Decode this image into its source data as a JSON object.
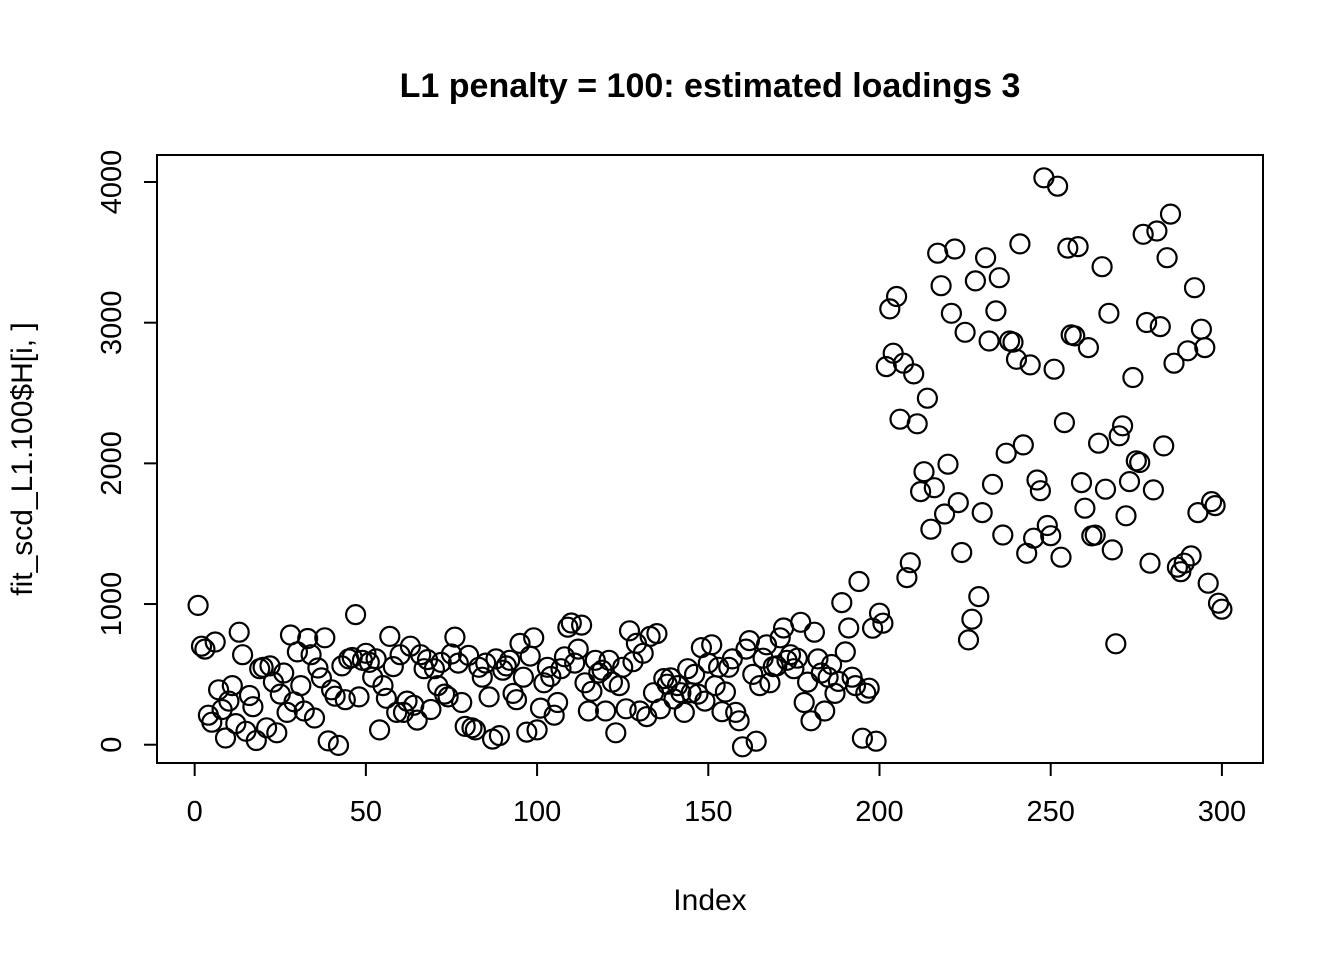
{
  "figure": {
    "background_color": "#ffffff",
    "foreground_color": "#000000"
  },
  "chart_data": {
    "type": "scatter",
    "title": "L1 penalty = 100: estimated loadings 3",
    "xlabel": "Index",
    "ylabel": "fit_scd_L1.100$H[i, ]",
    "marker": "open-circle",
    "marker_color": "#000000",
    "grid": false,
    "legend": "none",
    "x_is_index": true,
    "xlim": [
      -11,
      312
    ],
    "ylim": [
      -130,
      4192
    ],
    "xticks": [
      0,
      50,
      100,
      150,
      200,
      250,
      300
    ],
    "yticks": [
      0,
      1000,
      2000,
      3000,
      4000
    ],
    "values": [
      990,
      700,
      680,
      210,
      160,
      730,
      390,
      250,
      48,
      310,
      420,
      150,
      800,
      640,
      95,
      350,
      270,
      30,
      540,
      550,
      120,
      560,
      445,
      85,
      360,
      510,
      230,
      780,
      305,
      660,
      420,
      240,
      755,
      640,
      190,
      545,
      475,
      760,
      27,
      390,
      345,
      -5,
      560,
      320,
      610,
      620,
      925,
      340,
      600,
      650,
      585,
      480,
      610,
      105,
      420,
      330,
      770,
      555,
      230,
      640,
      230,
      310,
      700,
      280,
      175,
      640,
      540,
      605,
      250,
      540,
      420,
      585,
      360,
      340,
      645,
      765,
      580,
      300,
      130,
      635,
      120,
      105,
      550,
      480,
      580,
      340,
      40,
      610,
      65,
      530,
      560,
      600,
      365,
      320,
      720,
      480,
      90,
      630,
      760,
      105,
      260,
      440,
      550,
      485,
      210,
      300,
      540,
      625,
      835,
      865,
      580,
      680,
      850,
      440,
      240,
      380,
      600,
      510,
      530,
      240,
      600,
      445,
      85,
      420,
      550,
      255,
      810,
      590,
      720,
      240,
      650,
      200,
      770,
      370,
      790,
      255,
      470,
      430,
      475,
      325,
      420,
      370,
      230,
      540,
      370,
      500,
      360,
      690,
      310,
      580,
      710,
      420,
      550,
      235,
      375,
      550,
      610,
      230,
      170,
      -15,
      680,
      740,
      500,
      25,
      420,
      615,
      710,
      440,
      555,
      560,
      760,
      830,
      600,
      640,
      540,
      615,
      870,
      300,
      445,
      170,
      800,
      610,
      510,
      240,
      480,
      570,
      365,
      450,
      1010,
      660,
      830,
      480,
      420,
      1160,
      46,
      366,
      402,
      828,
      25,
      935,
      864,
      2688,
      3098,
      2783,
      3186,
      2314,
      2712,
      1188,
      1294,
      2636,
      2281,
      1799,
      1941,
      2463,
      1532,
      1827,
      3494,
      3263,
      1640,
      1994,
      3067,
      3524,
      1721,
      1366,
      2932,
      745,
      892,
      3297,
      1053,
      1650,
      3462,
      2870,
      1851,
      3084,
      3320,
      1491,
      2072,
      2870,
      2861,
      2740,
      3560,
      2131,
      1361,
      2700,
      1468,
      1882,
      1806,
      4030,
      1558,
      1486,
      2669,
      3970,
      1333,
      2290,
      3530,
      2913,
      2906,
      3541,
      1863,
      1681,
      2823,
      1484,
      1490,
      2143,
      3398,
      1816,
      3067,
      1385,
      717,
      2196,
      2267,
      1627,
      1870,
      2610,
      2018,
      2006,
      3628,
      3001,
      1290,
      1811,
      3652,
      2972,
      2124,
      3462,
      3772,
      2712,
      1262,
      1230,
      1290,
      2800,
      1342,
      3249,
      1650,
      2954,
      2823,
      1148,
      1728,
      1700,
      1006,
      963
    ]
  }
}
